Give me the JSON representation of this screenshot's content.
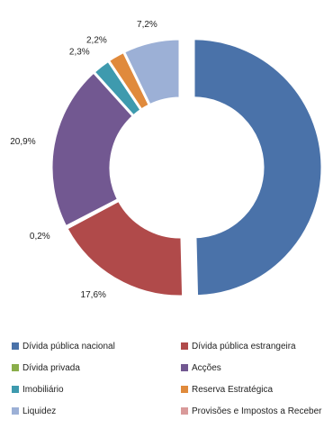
{
  "chart_data": {
    "type": "pie",
    "style": "donut",
    "title": "",
    "slices": [
      {
        "label": "Dívida pública nacional",
        "value": 49.6,
        "value_label": "49,6%",
        "color": "#4a72a9",
        "exploded": true
      },
      {
        "label": "Dívida pública estrangeira",
        "value": 17.6,
        "value_label": "17,6%",
        "color": "#b04a4a",
        "exploded": false
      },
      {
        "label": "Dívida privada",
        "value": 0.2,
        "value_label": "0,2%",
        "color": "#8aae4a",
        "exploded": false
      },
      {
        "label": "Acções",
        "value": 20.9,
        "value_label": "20,9%",
        "color": "#725891",
        "exploded": false
      },
      {
        "label": "Imobiliário",
        "value": 2.3,
        "value_label": "2,3%",
        "color": "#3e9aae",
        "exploded": false
      },
      {
        "label": "Reserva Estratégica",
        "value": 2.2,
        "value_label": "2,2%",
        "color": "#e08a3c",
        "exploded": false
      },
      {
        "label": "Liquidez",
        "value": 7.2,
        "value_label": "7,2%",
        "color": "#9cb0d6",
        "exploded": false
      },
      {
        "label": "Provisões e Impostos a Receber",
        "value": 0.0,
        "value_label": "",
        "color": "#d99a9a",
        "exploded": false
      }
    ],
    "legend": "bottom"
  }
}
